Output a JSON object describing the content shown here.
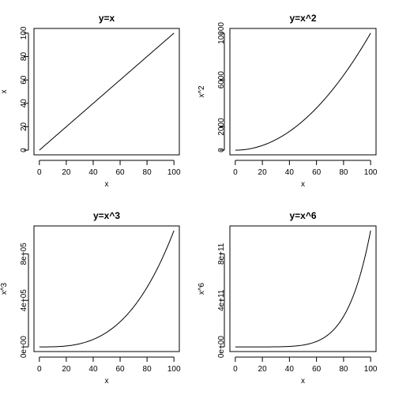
{
  "chart_data": [
    {
      "type": "line",
      "title": "y=x",
      "xlabel": "x",
      "ylabel": "x",
      "xlim": [
        0,
        100
      ],
      "ylim": [
        0,
        100
      ],
      "x_ticks": [
        0,
        20,
        40,
        60,
        80,
        100
      ],
      "x_tick_labels": [
        "0",
        "20",
        "40",
        "60",
        "80",
        "100"
      ],
      "y_ticks": [
        0,
        20,
        40,
        60,
        80,
        100
      ],
      "y_tick_labels": [
        "0",
        "20",
        "40",
        "60",
        "80",
        "100"
      ],
      "power": 1,
      "x": [
        0,
        10,
        20,
        30,
        40,
        50,
        60,
        70,
        80,
        90,
        100
      ],
      "y": [
        0,
        10,
        20,
        30,
        40,
        50,
        60,
        70,
        80,
        90,
        100
      ]
    },
    {
      "type": "line",
      "title": "y=x^2",
      "xlabel": "x",
      "ylabel": "x^2",
      "xlim": [
        0,
        100
      ],
      "ylim": [
        0,
        10000
      ],
      "x_ticks": [
        0,
        20,
        40,
        60,
        80,
        100
      ],
      "x_tick_labels": [
        "0",
        "20",
        "40",
        "60",
        "80",
        "100"
      ],
      "y_ticks": [
        0,
        2000,
        6000,
        10000
      ],
      "y_tick_labels": [
        "0",
        "2000",
        "6000",
        "10000"
      ],
      "power": 2,
      "x": [
        0,
        10,
        20,
        30,
        40,
        50,
        60,
        70,
        80,
        90,
        100
      ],
      "y": [
        0,
        100,
        400,
        900,
        1600,
        2500,
        3600,
        4900,
        6400,
        8100,
        10000
      ]
    },
    {
      "type": "line",
      "title": "y=x^3",
      "xlabel": "x",
      "ylabel": "x^3",
      "xlim": [
        0,
        100
      ],
      "ylim": [
        0,
        1000000
      ],
      "x_ticks": [
        0,
        20,
        40,
        60,
        80,
        100
      ],
      "x_tick_labels": [
        "0",
        "20",
        "40",
        "60",
        "80",
        "100"
      ],
      "y_ticks": [
        0,
        400000,
        800000
      ],
      "y_tick_labels": [
        "0e+00",
        "4e+05",
        "8e+05"
      ],
      "power": 3,
      "x": [
        0,
        10,
        20,
        30,
        40,
        50,
        60,
        70,
        80,
        90,
        100
      ],
      "y": [
        0,
        1000,
        8000,
        27000,
        64000,
        125000,
        216000,
        343000,
        512000,
        729000,
        1000000
      ]
    },
    {
      "type": "line",
      "title": "y=x^6",
      "xlabel": "x",
      "ylabel": "x^6",
      "xlim": [
        0,
        100
      ],
      "ylim": [
        0,
        1000000000000
      ],
      "x_ticks": [
        0,
        20,
        40,
        60,
        80,
        100
      ],
      "x_tick_labels": [
        "0",
        "20",
        "40",
        "60",
        "80",
        "100"
      ],
      "y_ticks": [
        0,
        400000000000,
        800000000000
      ],
      "y_tick_labels": [
        "0e+00",
        "4e+11",
        "8e+11"
      ],
      "power": 6,
      "x": [
        0,
        10,
        20,
        30,
        40,
        50,
        60,
        70,
        80,
        90,
        100
      ],
      "y": [
        0,
        1000000,
        64000000,
        729000000,
        4096000000,
        15625000000,
        46656000000,
        117649000000,
        262144000000,
        531441000000,
        1000000000000
      ]
    }
  ]
}
